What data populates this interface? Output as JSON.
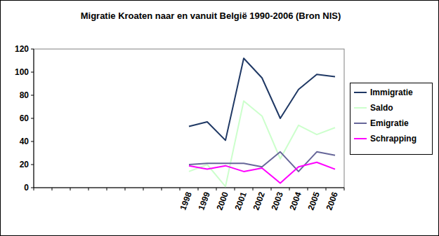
{
  "chart_data": {
    "type": "line",
    "title": "Migratie Kroaten naar en vanuit België 1990-2006 (Bron NIS)",
    "categories": [
      null,
      null,
      null,
      null,
      null,
      null,
      null,
      null,
      "1998",
      "1999",
      "2000",
      "2001",
      "2002",
      "2003",
      "2004",
      "2005",
      "2006"
    ],
    "series": [
      {
        "name": "Immigratie",
        "color": "#1f3864",
        "values": [
          null,
          null,
          null,
          null,
          null,
          null,
          null,
          null,
          53,
          57,
          41,
          112,
          95,
          60,
          85,
          98,
          96
        ]
      },
      {
        "name": "Saldo",
        "color": "#ccffcc",
        "values": [
          null,
          null,
          null,
          null,
          null,
          null,
          null,
          null,
          14,
          20,
          1,
          75,
          62,
          25,
          54,
          46,
          52
        ]
      },
      {
        "name": "Emigratie",
        "color": "#666699",
        "values": [
          null,
          null,
          null,
          null,
          null,
          null,
          null,
          null,
          20,
          21,
          21,
          21,
          18,
          31,
          14,
          31,
          28
        ]
      },
      {
        "name": "Schrapping",
        "color": "#ff00ff",
        "values": [
          null,
          null,
          null,
          null,
          null,
          null,
          null,
          null,
          19,
          16,
          19,
          14,
          17,
          4,
          18,
          22,
          16
        ]
      }
    ],
    "ylim": [
      0,
      120
    ],
    "yticks": [
      0,
      20,
      40,
      60,
      80,
      100,
      120
    ],
    "grid": false,
    "legend": "right"
  }
}
